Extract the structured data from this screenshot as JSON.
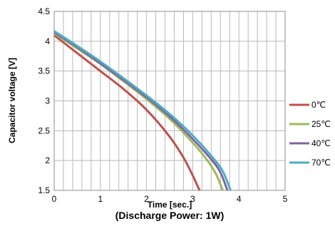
{
  "chart_data": {
    "type": "line",
    "xlabel": "Time [sec.]",
    "ylabel": "Capacitor voltage [V]",
    "caption": "(Discharge Power: 1W)",
    "xlim": [
      0,
      5
    ],
    "ylim": [
      1.5,
      4.5
    ],
    "x_ticks": [
      0,
      1,
      2,
      3,
      4,
      5
    ],
    "x_tick_labels": [
      "0",
      "1",
      "2",
      "3",
      "4",
      "5"
    ],
    "y_ticks": [
      1.5,
      2,
      2.5,
      3,
      3.5,
      4,
      4.5
    ],
    "y_tick_labels": [
      "1.5",
      "2",
      "2.5",
      "3",
      "3.5",
      "4",
      "4.5"
    ],
    "x_minor_step": 0.2,
    "y_major_step": 0.5,
    "grid": true,
    "legend_position": "right",
    "series": [
      {
        "name": "0℃",
        "color": "#c0504d",
        "points": [
          [
            0,
            4.1
          ],
          [
            0.5,
            3.8
          ],
          [
            1,
            3.5
          ],
          [
            1.5,
            3.2
          ],
          [
            2,
            2.85
          ],
          [
            2.5,
            2.4
          ],
          [
            2.8,
            2.05
          ],
          [
            3.0,
            1.75
          ],
          [
            3.1,
            1.58
          ],
          [
            3.15,
            1.5
          ]
        ]
      },
      {
        "name": "25℃",
        "color": "#9bbb59",
        "points": [
          [
            0,
            4.13
          ],
          [
            0.5,
            3.88
          ],
          [
            1,
            3.62
          ],
          [
            1.5,
            3.33
          ],
          [
            2,
            3.03
          ],
          [
            2.5,
            2.7
          ],
          [
            3,
            2.3
          ],
          [
            3.3,
            2.02
          ],
          [
            3.5,
            1.78
          ],
          [
            3.65,
            1.5
          ]
        ]
      },
      {
        "name": "40℃",
        "color": "#8064a2",
        "points": [
          [
            0,
            4.15
          ],
          [
            0.5,
            3.9
          ],
          [
            1,
            3.63
          ],
          [
            1.5,
            3.35
          ],
          [
            2,
            3.06
          ],
          [
            2.5,
            2.74
          ],
          [
            3,
            2.36
          ],
          [
            3.4,
            2.02
          ],
          [
            3.6,
            1.8
          ],
          [
            3.75,
            1.5
          ]
        ]
      },
      {
        "name": "70℃",
        "color": "#4bacc6",
        "points": [
          [
            0,
            4.17
          ],
          [
            0.5,
            3.92
          ],
          [
            1,
            3.66
          ],
          [
            1.5,
            3.38
          ],
          [
            2,
            3.09
          ],
          [
            2.5,
            2.78
          ],
          [
            3,
            2.42
          ],
          [
            3.4,
            2.08
          ],
          [
            3.65,
            1.82
          ],
          [
            3.82,
            1.5
          ]
        ]
      }
    ]
  }
}
